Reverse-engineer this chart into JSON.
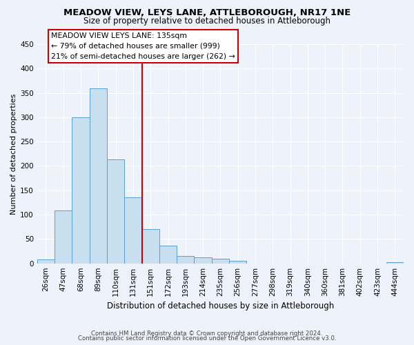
{
  "title": "MEADOW VIEW, LEYS LANE, ATTLEBOROUGH, NR17 1NE",
  "subtitle": "Size of property relative to detached houses in Attleborough",
  "xlabel": "Distribution of detached houses by size in Attleborough",
  "ylabel": "Number of detached properties",
  "bar_labels": [
    "26sqm",
    "47sqm",
    "68sqm",
    "89sqm",
    "110sqm",
    "131sqm",
    "151sqm",
    "172sqm",
    "193sqm",
    "214sqm",
    "235sqm",
    "256sqm",
    "277sqm",
    "298sqm",
    "319sqm",
    "340sqm",
    "360sqm",
    "381sqm",
    "402sqm",
    "423sqm",
    "444sqm"
  ],
  "bar_heights": [
    8,
    108,
    300,
    360,
    213,
    136,
    70,
    37,
    15,
    12,
    10,
    5,
    0,
    0,
    0,
    0,
    0,
    0,
    0,
    0,
    2
  ],
  "bar_color": "#c8dff0",
  "bar_edge_color": "#5a9fd4",
  "vline_color": "#cc0000",
  "annotation_title": "MEADOW VIEW LEYS LANE: 135sqm",
  "annotation_line1": "← 79% of detached houses are smaller (999)",
  "annotation_line2": "21% of semi-detached houses are larger (262) →",
  "annotation_box_color": "#ffffff",
  "annotation_box_edge": "#cc0000",
  "ylim": [
    0,
    450
  ],
  "yticks": [
    0,
    50,
    100,
    150,
    200,
    250,
    300,
    350,
    400,
    450
  ],
  "footnote1": "Contains HM Land Registry data © Crown copyright and database right 2024.",
  "footnote2": "Contains public sector information licensed under the Open Government Licence v3.0.",
  "background_color": "#eef2fa",
  "grid_color": "#ffffff",
  "title_fontsize": 9.5,
  "subtitle_fontsize": 8.5,
  "ylabel_fontsize": 8,
  "xlabel_fontsize": 8.5,
  "tick_fontsize": 7.5,
  "footnote_fontsize": 6.2
}
